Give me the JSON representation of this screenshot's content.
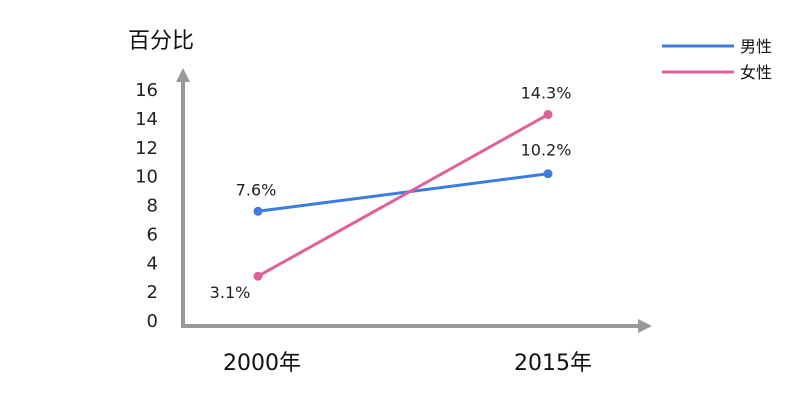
{
  "chart_data": {
    "type": "line",
    "ylabel": "百分比",
    "categories": [
      "2000年",
      "2015年"
    ],
    "y_ticks": [
      "0",
      "2",
      "4",
      "6",
      "8",
      "10",
      "12",
      "14",
      "16"
    ],
    "ylim": [
      0,
      16
    ],
    "grid": false,
    "legend_position": "top-right",
    "series": [
      {
        "name": "男性",
        "color": "#3b7ddd",
        "values": [
          7.6,
          10.2
        ],
        "labels": [
          "7.6%",
          "10.2%"
        ]
      },
      {
        "name": "女性",
        "color": "#e0609a",
        "values": [
          3.1,
          14.3
        ],
        "labels": [
          "3.1%",
          "14.3%"
        ]
      }
    ],
    "axis_color": "#999999"
  }
}
